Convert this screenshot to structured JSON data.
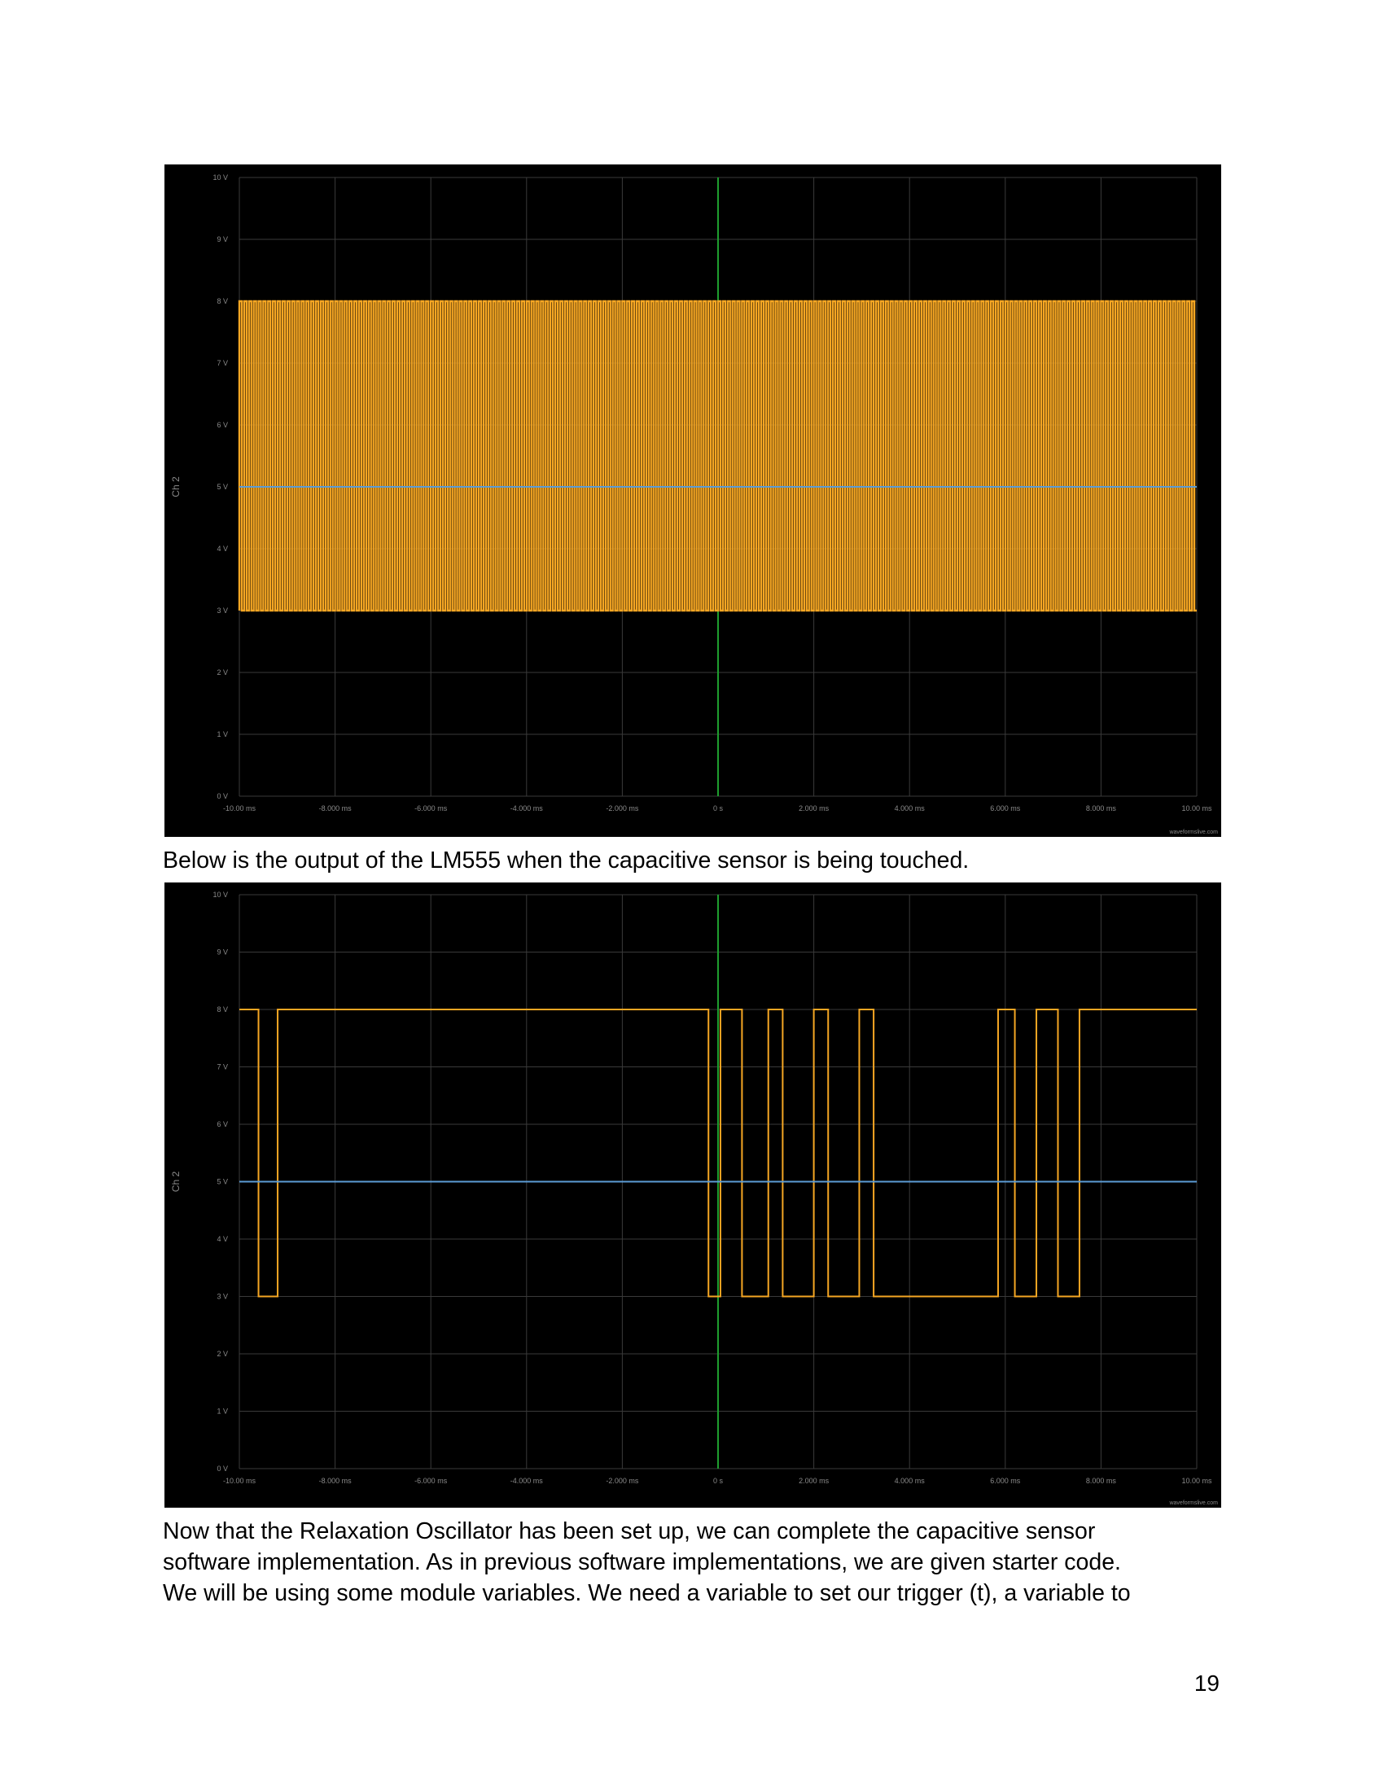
{
  "chart_data": [
    {
      "type": "line",
      "title": "",
      "ylabel": "Ch 2",
      "xlabel": "",
      "xlim": [
        -10,
        10
      ],
      "ylim": [
        0,
        10
      ],
      "grid": true,
      "x_tick_labels": [
        "-10.00 ms",
        "-8.000 ms",
        "-6.000 ms",
        "-4.000 ms",
        "-2.000 ms",
        "0 s",
        "2.000 ms",
        "4.000 ms",
        "6.000 ms",
        "8.000 ms",
        "10.00 ms"
      ],
      "y_tick_labels": [
        "0 V",
        "1 V",
        "2 V",
        "3 V",
        "4 V",
        "5 V",
        "6 V",
        "7 V",
        "8 V",
        "9 V",
        "10 V"
      ],
      "watermark": "waveformslive.com",
      "series": [
        {
          "color": "#f5a623",
          "waveform": "square",
          "low": 3,
          "high": 8,
          "approx_cycles": 200,
          "x_start": -10,
          "x_end": 10
        },
        {
          "color": "#5b9bd5",
          "waveform": "constant",
          "level": 5
        }
      ]
    },
    {
      "type": "line",
      "title": "",
      "ylabel": "Ch 2",
      "xlabel": "",
      "xlim": [
        -10,
        10
      ],
      "ylim": [
        0,
        10
      ],
      "grid": true,
      "x_tick_labels": [
        "-10.00 ms",
        "-8.000 ms",
        "-6.000 ms",
        "-4.000 ms",
        "-2.000 ms",
        "0 s",
        "2.000 ms",
        "4.000 ms",
        "6.000 ms",
        "8.000 ms",
        "10.00 ms"
      ],
      "y_tick_labels": [
        "0 V",
        "1 V",
        "2 V",
        "3 V",
        "4 V",
        "5 V",
        "6 V",
        "7 V",
        "8 V",
        "9 V",
        "10 V"
      ],
      "watermark": "waveformslive.com",
      "series": [
        {
          "color": "#f5a623",
          "waveform": "square",
          "low": 3,
          "high": 8,
          "high_intervals": [
            [
              -10.0,
              -9.6
            ],
            [
              -9.2,
              -0.2
            ],
            [
              0.05,
              0.5
            ],
            [
              1.05,
              1.35
            ],
            [
              2.0,
              2.3
            ],
            [
              2.95,
              3.25
            ],
            [
              5.85,
              6.2
            ],
            [
              6.65,
              7.1
            ],
            [
              7.55,
              10.0
            ]
          ]
        },
        {
          "color": "#5b9bd5",
          "waveform": "constant",
          "level": 5
        }
      ]
    }
  ],
  "caption": "Below is the output of the LM555 when the capacitive sensor is being touched.",
  "body_lines": [
    "Now that the Relaxation Oscillator has been set up, we can complete the capacitive sensor",
    "software implementation. As in previous software implementations, we are given starter code.",
    "We will be using some module variables. We need a variable to set our trigger (t), a variable to"
  ],
  "page_number": "19"
}
